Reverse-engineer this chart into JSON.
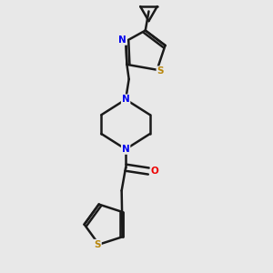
{
  "bg_color": "#e8e8e8",
  "bond_color": "#1a1a1a",
  "bond_width": 1.8,
  "N_color": "#0000ee",
  "S_color": "#b8860b",
  "O_color": "#ee0000",
  "figsize": [
    3.0,
    3.0
  ],
  "dpi": 100,
  "xlim": [
    0,
    10
  ],
  "ylim": [
    0,
    10
  ]
}
